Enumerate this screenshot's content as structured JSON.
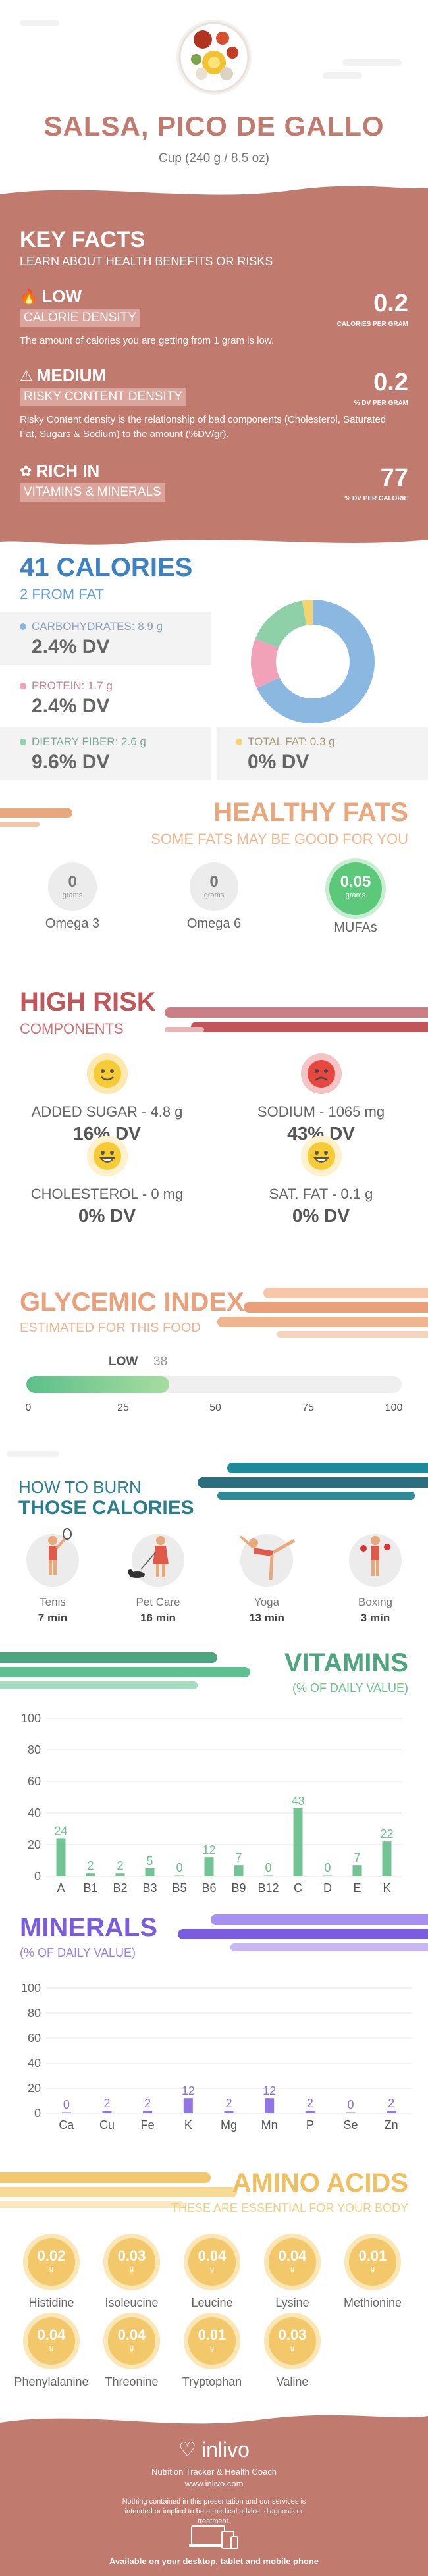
{
  "header": {
    "title": "SALSA, PICO DE GALLO",
    "serving": "Cup (240 g / 8.5 oz)"
  },
  "keyfacts": {
    "title": "KEY FACTS",
    "subtitle": "LEARN ABOUT HEALTH BENEFITS OR RISKS",
    "items": [
      {
        "level": "LOW",
        "label": "CALORIE DENSITY",
        "value": "0.2",
        "unit": "CALORIES PER GRAM",
        "desc": "The amount of calories you are getting from 1 gram is low."
      },
      {
        "level": "MEDIUM",
        "label": "RISKY CONTENT DENSITY",
        "value": "0.2",
        "unit": "% DV PER GRAM",
        "desc": "Risky Content density is the relationship of bad components (Cholesterol, Saturated Fat, Sugars & Sodium) to the amount (%DV/gr)."
      },
      {
        "level": "RICH IN",
        "label": "VITAMINS & MINERALS",
        "value": "77",
        "unit": "% DV PER CALORIE",
        "desc": ""
      }
    ]
  },
  "calories": {
    "title": "41 CALORIES",
    "from_fat": "2 FROM FAT",
    "carbs_label": "CARBOHYDRATES: 8.9 g",
    "carbs_dv": "2.4% DV",
    "protein_label": "PROTEIN: 1.7 g",
    "protein_dv": "2.4% DV",
    "fiber_label": "DIETARY FIBER: 2.6 g",
    "fiber_dv": "9.6% DV",
    "fat_label": "TOTAL FAT: 0.3 g",
    "fat_dv": "0% DV",
    "colors": {
      "carbs": "#8bb8e0",
      "protein": "#f2a2b8",
      "fiber": "#8ed0a8",
      "fat": "#f5d36e"
    }
  },
  "healthy_fats": {
    "title": "HEALTHY FATS",
    "subtitle": "SOME FATS MAY BE GOOD FOR YOU",
    "items": [
      {
        "value": "0",
        "unit": "grams",
        "label": "Omega 3"
      },
      {
        "value": "0",
        "unit": "grams",
        "label": "Omega 6"
      },
      {
        "value": "0.05",
        "unit": "grams",
        "label": "MUFAs"
      }
    ]
  },
  "high_risk": {
    "title": "HIGH RISK",
    "subtitle": "COMPONENTS",
    "items": [
      {
        "label": "ADDED SUGAR - 4.8 g",
        "dv": "16% DV"
      },
      {
        "label": "SODIUM - 1065 mg",
        "dv": "43% DV"
      },
      {
        "label": "CHOLESTEROL - 0 mg",
        "dv": "0% DV"
      },
      {
        "label": "SAT. FAT - 0.1 g",
        "dv": "0% DV"
      }
    ]
  },
  "glycemic": {
    "title": "GLYCEMIC INDEX",
    "subtitle": "ESTIMATED FOR THIS FOOD",
    "level": "LOW",
    "value": "38",
    "ticks": [
      "0",
      "25",
      "50",
      "75",
      "100"
    ],
    "fraction": 0.38
  },
  "burn": {
    "title1": "HOW TO BURN",
    "title2": "THOSE CALORIES",
    "items": [
      {
        "name": "Tenis",
        "time": "7 min"
      },
      {
        "name": "Pet Care",
        "time": "16 min"
      },
      {
        "name": "Yoga",
        "time": "13 min"
      },
      {
        "name": "Boxing",
        "time": "3 min"
      }
    ]
  },
  "vitamins": {
    "title": "VITAMINS",
    "subtitle": "(% OF DAILY VALUE)"
  },
  "minerals": {
    "title": "MINERALS",
    "subtitle": "(% OF DAILY VALUE)"
  },
  "chart_data": [
    {
      "type": "bar",
      "title": "VITAMINS",
      "categories": [
        "A",
        "B1",
        "B2",
        "B3",
        "B5",
        "B6",
        "B9",
        "B12",
        "C",
        "D",
        "E",
        "K"
      ],
      "values": [
        24,
        2,
        2,
        5,
        0,
        12,
        7,
        0,
        43,
        0,
        7,
        22
      ],
      "ylim": [
        0,
        100
      ],
      "yticks": [
        0,
        20,
        40,
        60,
        80,
        100
      ],
      "color": "#6cc08f"
    },
    {
      "type": "bar",
      "title": "MINERALS",
      "categories": [
        "Ca",
        "Cu",
        "Fe",
        "K",
        "Mg",
        "Mn",
        "P",
        "Se",
        "Zn"
      ],
      "values": [
        0,
        2,
        2,
        12,
        2,
        12,
        2,
        0,
        2
      ],
      "ylim": [
        0,
        100
      ],
      "yticks": [
        0,
        20,
        40,
        60,
        80,
        100
      ],
      "color": "#8a6fe0"
    }
  ],
  "amino": {
    "title": "AMINO ACIDS",
    "subtitle": "THESE ARE ESSENTIAL FOR YOUR BODY",
    "unit": "g",
    "items": [
      {
        "value": "0.02",
        "label": "Histidine"
      },
      {
        "value": "0.03",
        "label": "Isoleucine"
      },
      {
        "value": "0.04",
        "label": "Leucine"
      },
      {
        "value": "0.04",
        "label": "Lysine"
      },
      {
        "value": "0.01",
        "label": "Methionine"
      },
      {
        "value": "0.04",
        "label": "Phenylalanine"
      },
      {
        "value": "0.04",
        "label": "Threonine"
      },
      {
        "value": "0.01",
        "label": "Tryptophan"
      },
      {
        "value": "0.03",
        "label": "Valine"
      }
    ]
  },
  "footer": {
    "brand": "inlivo",
    "tagline": "Nutrition Tracker & Health Coach",
    "url": "www.inlivo.com",
    "disclaimer": "Nothing contained in this presentation and our services is intended or implied to be a medical advice, diagnosis or treatment.",
    "available": "Available on your desktop, tablet and mobile phone"
  }
}
